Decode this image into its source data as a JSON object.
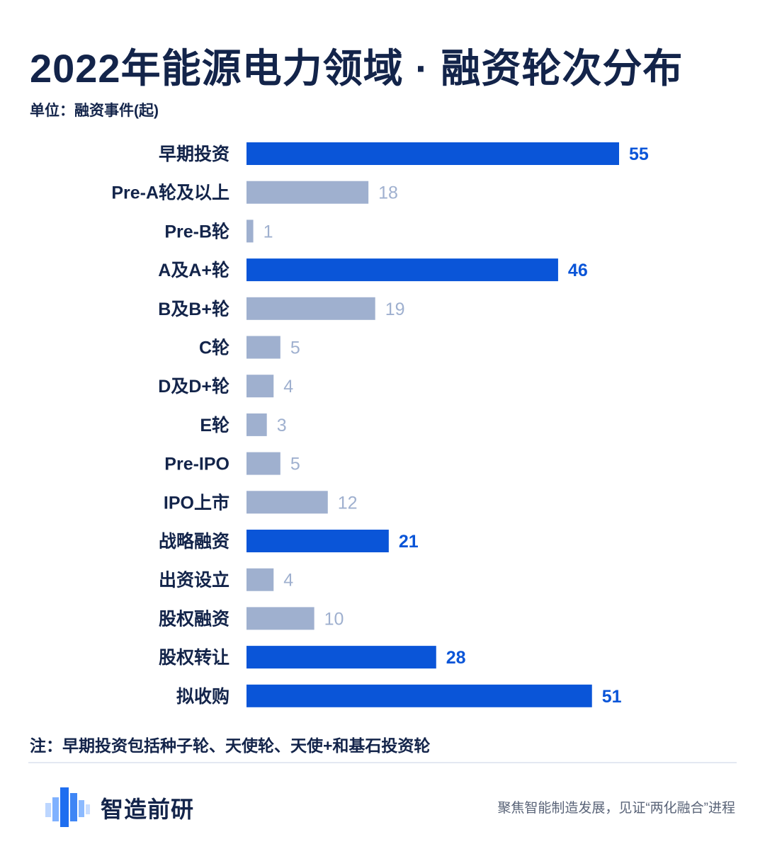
{
  "title": "2022年能源电力领域 · 融资轮次分布",
  "unit_label": "单位：融资事件(起)",
  "note": "注：早期投资包括种子轮、天使轮、天使+和基石投资轮",
  "brand": "智造前研",
  "slogan": "聚焦智能制造发展，见证“两化融合”进程",
  "colors": {
    "highlight": "#0a55d8",
    "normal": "#9fb0cf",
    "label_highlight": "#0a55d8",
    "label_normal": "#9fb0cf",
    "text_dark": "#13244a"
  },
  "chart_data": {
    "type": "bar",
    "orientation": "horizontal",
    "categories": [
      "早期投资",
      "Pre-A轮及以上",
      "Pre-B轮",
      "A及A+轮",
      "B及B+轮",
      "C轮",
      "D及D+轮",
      "E轮",
      "Pre-IPO",
      "IPO上市",
      "战略融资",
      "出资设立",
      "股权融资",
      "股权转让",
      "拟收购"
    ],
    "values": [
      55,
      18,
      1,
      46,
      19,
      5,
      4,
      3,
      5,
      12,
      21,
      4,
      10,
      28,
      51
    ],
    "highlighted": [
      true,
      false,
      false,
      true,
      false,
      false,
      false,
      false,
      false,
      false,
      true,
      false,
      false,
      true,
      true
    ],
    "xlim": [
      0,
      55
    ],
    "grid": false,
    "data_labels": true
  }
}
